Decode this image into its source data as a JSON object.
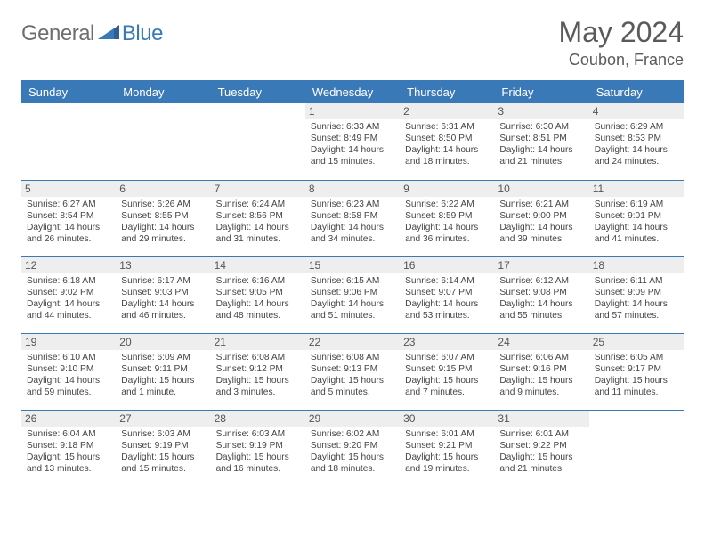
{
  "brand": {
    "part1": "General",
    "part2": "Blue"
  },
  "title": {
    "month_year": "May 2024",
    "location": "Coubon, France"
  },
  "colors": {
    "header_bg": "#3a79b7",
    "header_fg": "#ffffff",
    "daynum_bg": "#eeeeee",
    "rule": "#3a79b7",
    "brand_general": "#6e6e6e",
    "brand_blue": "#3a79b7",
    "text": "#444444"
  },
  "days_of_week": [
    "Sunday",
    "Monday",
    "Tuesday",
    "Wednesday",
    "Thursday",
    "Friday",
    "Saturday"
  ],
  "weeks": [
    [
      null,
      null,
      null,
      {
        "n": "1",
        "sr": "6:33 AM",
        "ss": "8:49 PM",
        "dl": "14 hours and 15 minutes."
      },
      {
        "n": "2",
        "sr": "6:31 AM",
        "ss": "8:50 PM",
        "dl": "14 hours and 18 minutes."
      },
      {
        "n": "3",
        "sr": "6:30 AM",
        "ss": "8:51 PM",
        "dl": "14 hours and 21 minutes."
      },
      {
        "n": "4",
        "sr": "6:29 AM",
        "ss": "8:53 PM",
        "dl": "14 hours and 24 minutes."
      }
    ],
    [
      {
        "n": "5",
        "sr": "6:27 AM",
        "ss": "8:54 PM",
        "dl": "14 hours and 26 minutes."
      },
      {
        "n": "6",
        "sr": "6:26 AM",
        "ss": "8:55 PM",
        "dl": "14 hours and 29 minutes."
      },
      {
        "n": "7",
        "sr": "6:24 AM",
        "ss": "8:56 PM",
        "dl": "14 hours and 31 minutes."
      },
      {
        "n": "8",
        "sr": "6:23 AM",
        "ss": "8:58 PM",
        "dl": "14 hours and 34 minutes."
      },
      {
        "n": "9",
        "sr": "6:22 AM",
        "ss": "8:59 PM",
        "dl": "14 hours and 36 minutes."
      },
      {
        "n": "10",
        "sr": "6:21 AM",
        "ss": "9:00 PM",
        "dl": "14 hours and 39 minutes."
      },
      {
        "n": "11",
        "sr": "6:19 AM",
        "ss": "9:01 PM",
        "dl": "14 hours and 41 minutes."
      }
    ],
    [
      {
        "n": "12",
        "sr": "6:18 AM",
        "ss": "9:02 PM",
        "dl": "14 hours and 44 minutes."
      },
      {
        "n": "13",
        "sr": "6:17 AM",
        "ss": "9:03 PM",
        "dl": "14 hours and 46 minutes."
      },
      {
        "n": "14",
        "sr": "6:16 AM",
        "ss": "9:05 PM",
        "dl": "14 hours and 48 minutes."
      },
      {
        "n": "15",
        "sr": "6:15 AM",
        "ss": "9:06 PM",
        "dl": "14 hours and 51 minutes."
      },
      {
        "n": "16",
        "sr": "6:14 AM",
        "ss": "9:07 PM",
        "dl": "14 hours and 53 minutes."
      },
      {
        "n": "17",
        "sr": "6:12 AM",
        "ss": "9:08 PM",
        "dl": "14 hours and 55 minutes."
      },
      {
        "n": "18",
        "sr": "6:11 AM",
        "ss": "9:09 PM",
        "dl": "14 hours and 57 minutes."
      }
    ],
    [
      {
        "n": "19",
        "sr": "6:10 AM",
        "ss": "9:10 PM",
        "dl": "14 hours and 59 minutes."
      },
      {
        "n": "20",
        "sr": "6:09 AM",
        "ss": "9:11 PM",
        "dl": "15 hours and 1 minute."
      },
      {
        "n": "21",
        "sr": "6:08 AM",
        "ss": "9:12 PM",
        "dl": "15 hours and 3 minutes."
      },
      {
        "n": "22",
        "sr": "6:08 AM",
        "ss": "9:13 PM",
        "dl": "15 hours and 5 minutes."
      },
      {
        "n": "23",
        "sr": "6:07 AM",
        "ss": "9:15 PM",
        "dl": "15 hours and 7 minutes."
      },
      {
        "n": "24",
        "sr": "6:06 AM",
        "ss": "9:16 PM",
        "dl": "15 hours and 9 minutes."
      },
      {
        "n": "25",
        "sr": "6:05 AM",
        "ss": "9:17 PM",
        "dl": "15 hours and 11 minutes."
      }
    ],
    [
      {
        "n": "26",
        "sr": "6:04 AM",
        "ss": "9:18 PM",
        "dl": "15 hours and 13 minutes."
      },
      {
        "n": "27",
        "sr": "6:03 AM",
        "ss": "9:19 PM",
        "dl": "15 hours and 15 minutes."
      },
      {
        "n": "28",
        "sr": "6:03 AM",
        "ss": "9:19 PM",
        "dl": "15 hours and 16 minutes."
      },
      {
        "n": "29",
        "sr": "6:02 AM",
        "ss": "9:20 PM",
        "dl": "15 hours and 18 minutes."
      },
      {
        "n": "30",
        "sr": "6:01 AM",
        "ss": "9:21 PM",
        "dl": "15 hours and 19 minutes."
      },
      {
        "n": "31",
        "sr": "6:01 AM",
        "ss": "9:22 PM",
        "dl": "15 hours and 21 minutes."
      },
      null
    ]
  ],
  "labels": {
    "sunrise": "Sunrise:",
    "sunset": "Sunset:",
    "daylight": "Daylight:"
  }
}
